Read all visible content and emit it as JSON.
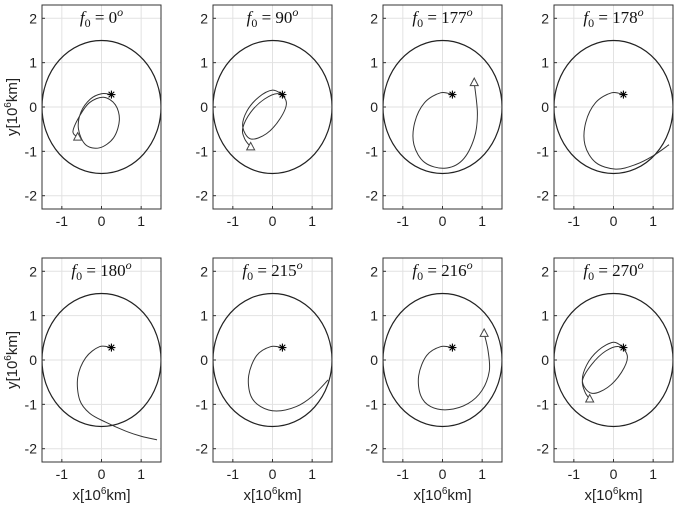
{
  "chart_data": {
    "type": "line",
    "layout": "2x4 grid of small multiples",
    "xlabel": "x[10^6km]",
    "ylabel": "y[10^6km]",
    "xlim": [
      -1.5,
      1.5
    ],
    "ylim": [
      -2.3,
      2.3
    ],
    "xticks": [
      "-1",
      "0",
      "1"
    ],
    "yticks": [
      "2",
      "1",
      "0",
      "-1",
      "-2"
    ],
    "grid": true,
    "line_color": "#333333",
    "circle_radius": 1.5,
    "circle_center": [
      0,
      0
    ],
    "star_marker": [
      0.25,
      0.28
    ],
    "panels": [
      {
        "title_var": "f",
        "title_sub": "0",
        "title_value": "0",
        "title_sup": "o",
        "triangle": [
          -0.6,
          -0.68
        ],
        "trajectory": [
          [
            0.25,
            0.28
          ],
          [
            0.0,
            0.3
          ],
          [
            -0.28,
            0.18
          ],
          [
            -0.52,
            -0.12
          ],
          [
            -0.58,
            -0.5
          ],
          [
            -0.4,
            -0.85
          ],
          [
            -0.05,
            -0.92
          ],
          [
            0.3,
            -0.7
          ],
          [
            0.45,
            -0.3
          ],
          [
            0.35,
            0.05
          ],
          [
            0.05,
            0.22
          ],
          [
            -0.3,
            0.1
          ],
          [
            -0.55,
            -0.2
          ],
          [
            -0.72,
            -0.55
          ],
          [
            -0.6,
            -0.68
          ]
        ]
      },
      {
        "title_var": "f",
        "title_sub": "0",
        "title_value": "90",
        "title_sup": "o",
        "triangle": [
          -0.55,
          -0.9
        ],
        "trajectory": [
          [
            0.25,
            0.28
          ],
          [
            0.0,
            0.38
          ],
          [
            -0.35,
            0.22
          ],
          [
            -0.65,
            -0.1
          ],
          [
            -0.75,
            -0.45
          ],
          [
            -0.55,
            -0.72
          ],
          [
            -0.15,
            -0.6
          ],
          [
            0.2,
            -0.25
          ],
          [
            0.35,
            0.1
          ],
          [
            0.15,
            0.3
          ],
          [
            -0.2,
            0.18
          ],
          [
            -0.55,
            -0.12
          ],
          [
            -0.75,
            -0.48
          ],
          [
            -0.7,
            -0.72
          ],
          [
            -0.55,
            -0.9
          ]
        ]
      },
      {
        "title_var": "f",
        "title_sub": "0",
        "title_value": "177",
        "title_sup": "o",
        "triangle": [
          0.8,
          0.55
        ],
        "trajectory": [
          [
            0.25,
            0.28
          ],
          [
            -0.05,
            0.32
          ],
          [
            -0.45,
            0.1
          ],
          [
            -0.7,
            -0.35
          ],
          [
            -0.72,
            -0.85
          ],
          [
            -0.45,
            -1.25
          ],
          [
            0.05,
            -1.38
          ],
          [
            0.5,
            -1.2
          ],
          [
            0.8,
            -0.7
          ],
          [
            0.88,
            -0.15
          ],
          [
            0.8,
            0.55
          ]
        ]
      },
      {
        "title_var": "f",
        "title_sub": "0",
        "title_value": "178",
        "title_sup": "o",
        "triangle": null,
        "trajectory": [
          [
            0.25,
            0.28
          ],
          [
            -0.05,
            0.32
          ],
          [
            -0.45,
            0.1
          ],
          [
            -0.7,
            -0.35
          ],
          [
            -0.72,
            -0.85
          ],
          [
            -0.45,
            -1.25
          ],
          [
            0.05,
            -1.4
          ],
          [
            0.55,
            -1.3
          ],
          [
            1.0,
            -1.1
          ],
          [
            1.4,
            -0.85
          ]
        ]
      },
      {
        "title_var": "f",
        "title_sub": "0",
        "title_value": "180",
        "title_sup": "o",
        "triangle": null,
        "trajectory": [
          [
            0.25,
            0.28
          ],
          [
            -0.05,
            0.3
          ],
          [
            -0.4,
            0.05
          ],
          [
            -0.6,
            -0.4
          ],
          [
            -0.55,
            -0.9
          ],
          [
            -0.3,
            -1.2
          ],
          [
            0.1,
            -1.4
          ],
          [
            0.6,
            -1.6
          ],
          [
            1.0,
            -1.72
          ],
          [
            1.4,
            -1.8
          ]
        ]
      },
      {
        "title_var": "f",
        "title_sub": "0",
        "title_value": "215",
        "title_sup": "o",
        "triangle": null,
        "trajectory": [
          [
            0.25,
            0.28
          ],
          [
            -0.05,
            0.3
          ],
          [
            -0.4,
            0.1
          ],
          [
            -0.6,
            -0.35
          ],
          [
            -0.55,
            -0.8
          ],
          [
            -0.3,
            -1.05
          ],
          [
            0.1,
            -1.15
          ],
          [
            0.6,
            -1.05
          ],
          [
            1.0,
            -0.82
          ],
          [
            1.4,
            -0.45
          ]
        ]
      },
      {
        "title_var": "f",
        "title_sub": "0",
        "title_value": "216",
        "title_sup": "o",
        "triangle": [
          1.05,
          0.6
        ],
        "trajectory": [
          [
            0.25,
            0.28
          ],
          [
            -0.05,
            0.3
          ],
          [
            -0.4,
            0.1
          ],
          [
            -0.6,
            -0.35
          ],
          [
            -0.55,
            -0.8
          ],
          [
            -0.3,
            -1.05
          ],
          [
            0.15,
            -1.12
          ],
          [
            0.65,
            -0.98
          ],
          [
            1.0,
            -0.68
          ],
          [
            1.18,
            -0.25
          ],
          [
            1.15,
            0.2
          ],
          [
            1.05,
            0.6
          ]
        ]
      },
      {
        "title_var": "f",
        "title_sub": "0",
        "title_value": "270",
        "title_sup": "o",
        "triangle": [
          -0.6,
          -0.88
        ],
        "trajectory": [
          [
            0.25,
            0.28
          ],
          [
            0.0,
            0.4
          ],
          [
            -0.38,
            0.22
          ],
          [
            -0.68,
            -0.12
          ],
          [
            -0.78,
            -0.5
          ],
          [
            -0.55,
            -0.75
          ],
          [
            -0.15,
            -0.62
          ],
          [
            0.2,
            -0.28
          ],
          [
            0.35,
            0.08
          ],
          [
            0.15,
            0.3
          ],
          [
            -0.2,
            0.2
          ],
          [
            -0.55,
            -0.1
          ],
          [
            -0.78,
            -0.45
          ],
          [
            -0.72,
            -0.72
          ],
          [
            -0.6,
            -0.88
          ]
        ]
      }
    ]
  }
}
